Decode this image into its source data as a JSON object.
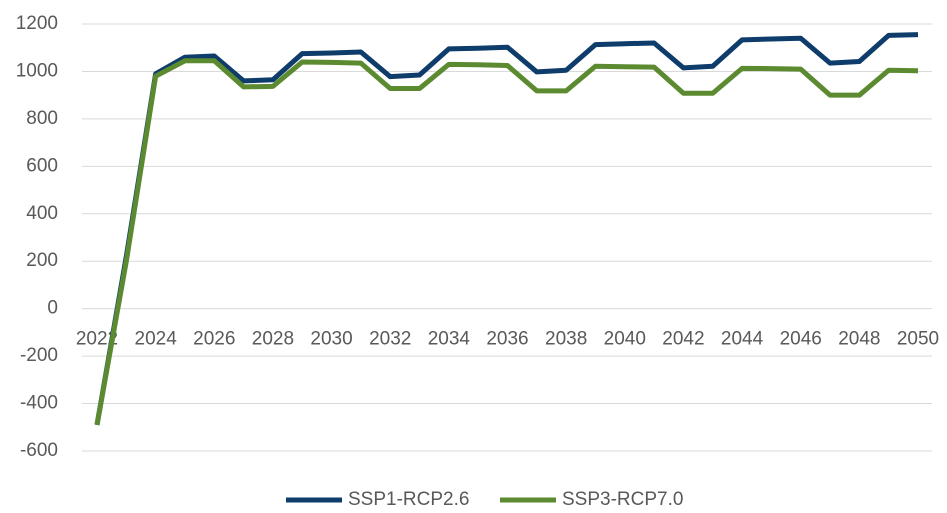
{
  "chart_data": {
    "type": "line",
    "x": [
      2022,
      2023,
      2024,
      2025,
      2026,
      2027,
      2028,
      2029,
      2030,
      2031,
      2032,
      2033,
      2034,
      2035,
      2036,
      2037,
      2038,
      2039,
      2040,
      2041,
      2042,
      2043,
      2044,
      2045,
      2046,
      2047,
      2048,
      2049,
      2050
    ],
    "series": [
      {
        "name": "SSP1-RCP2.6",
        "color": "#0e3c6b",
        "values": [
          -490,
          220,
          990,
          1060,
          1065,
          960,
          965,
          1075,
          1078,
          1082,
          978,
          985,
          1095,
          1098,
          1102,
          998,
          1005,
          1113,
          1117,
          1120,
          1015,
          1022,
          1133,
          1137,
          1140,
          1035,
          1042,
          1152,
          1155
        ]
      },
      {
        "name": "SSP3-RCP7.0",
        "color": "#5b8a31",
        "values": [
          -490,
          200,
          980,
          1045,
          1045,
          935,
          937,
          1040,
          1038,
          1035,
          928,
          928,
          1030,
          1028,
          1025,
          918,
          918,
          1022,
          1020,
          1018,
          908,
          908,
          1013,
          1012,
          1010,
          900,
          900,
          1005,
          1003
        ]
      }
    ],
    "xlim": [
      2022,
      2050
    ],
    "xticks": [
      2022,
      2024,
      2026,
      2028,
      2030,
      2032,
      2034,
      2036,
      2038,
      2040,
      2042,
      2044,
      2046,
      2048,
      2050
    ],
    "ylim": [
      -600,
      1200
    ],
    "yticks": [
      -600,
      -400,
      -200,
      0,
      200,
      400,
      600,
      800,
      1000,
      1200
    ],
    "grid": true,
    "legend": "bottom"
  }
}
